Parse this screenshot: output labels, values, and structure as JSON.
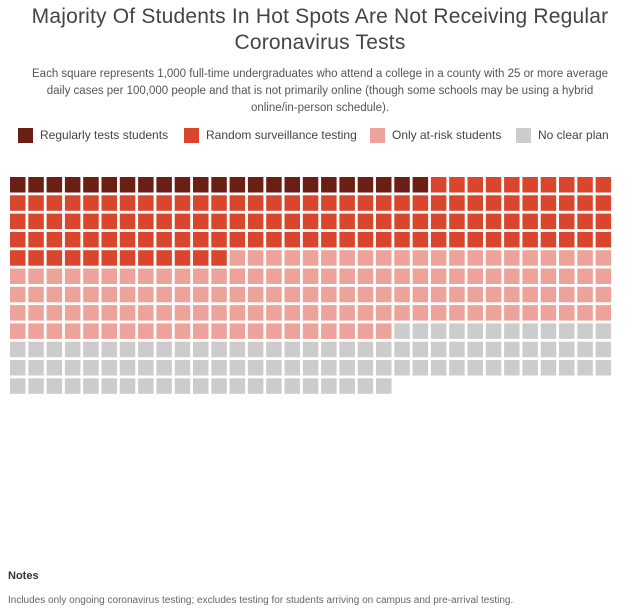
{
  "title": "Majority Of Students In Hot Spots Are Not Receiving Regular Coronavirus Tests",
  "subtitle": "Each square represents 1,000 full-time undergraduates who attend a college in a county with 25 or more average daily cases per 100,000 people and that is not primarily online (though some schools may be using a hybrid online/in-person schedule).",
  "notes": {
    "heading": "Notes",
    "text": "Includes only ongoing coronavirus testing; excludes testing for students arriving on campus and pre-arrival testing."
  },
  "chart_data": {
    "type": "waffle",
    "unit": "1,000 full-time undergraduates per square",
    "squares_per_row": 33,
    "legend_placement": "top",
    "categories": [
      "Regularly tests students",
      "Random surveillance testing",
      "Only at-risk students",
      "No clear plan"
    ],
    "values": [
      23,
      121,
      141,
      99
    ],
    "colors": [
      "#6b1e14",
      "#d9452d",
      "#eea39a",
      "#cccccc"
    ]
  }
}
